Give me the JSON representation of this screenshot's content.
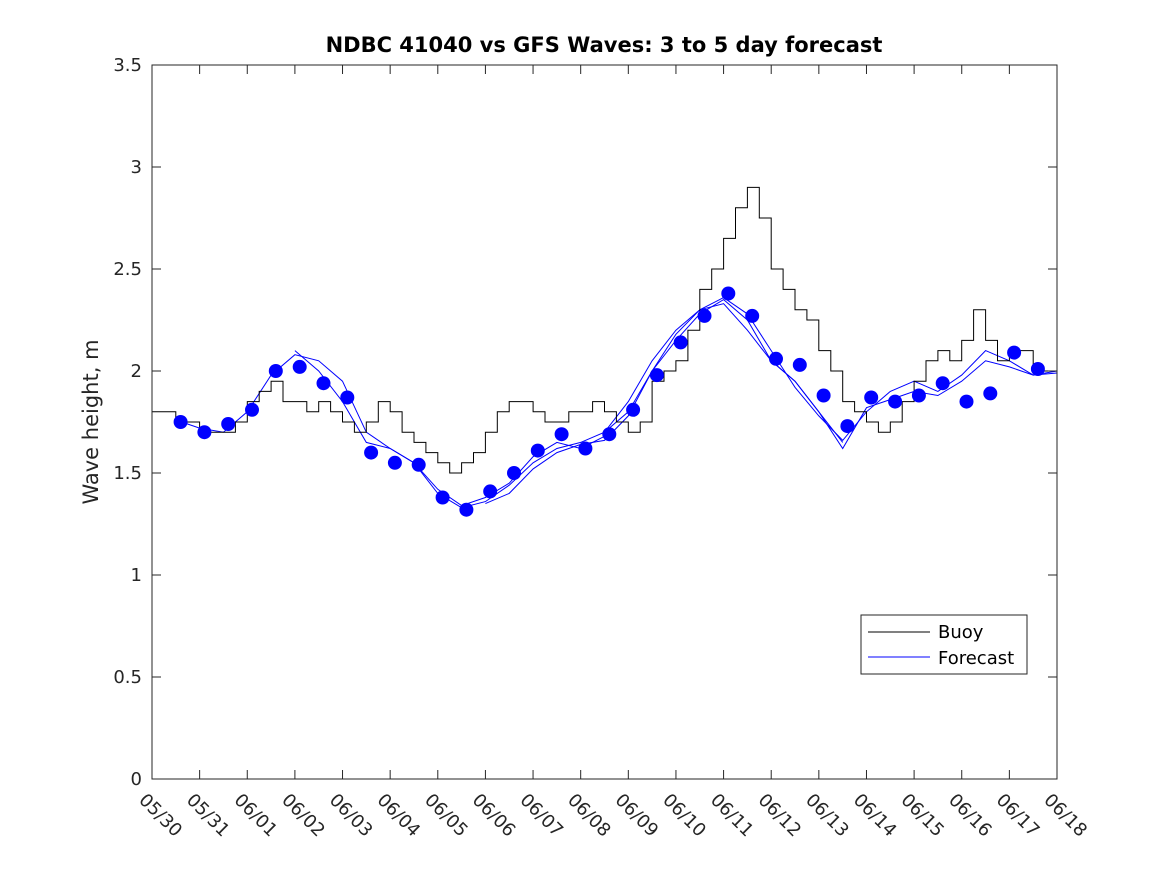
{
  "chart_data": {
    "type": "line",
    "title": "NDBC 41040 vs GFS Waves: 3 to 5 day forecast",
    "xlabel": "",
    "ylabel": "Wave height, m",
    "xlim": [
      0,
      19
    ],
    "ylim": [
      0,
      3.5
    ],
    "x_tick_labels": [
      "05/30",
      "05/31",
      "06/01",
      "06/02",
      "06/03",
      "06/04",
      "06/05",
      "06/06",
      "06/07",
      "06/08",
      "06/09",
      "06/10",
      "06/11",
      "06/12",
      "06/13",
      "06/14",
      "06/15",
      "06/16",
      "06/17",
      "06/18"
    ],
    "y_ticks": [
      0,
      0.5,
      1,
      1.5,
      2,
      2.5,
      3,
      3.5
    ],
    "y_tick_labels": [
      "0",
      "0.5",
      "1",
      "1.5",
      "2",
      "2.5",
      "3",
      "3.5"
    ],
    "x_units": "days since 05/30",
    "colors": {
      "buoy": "#000000",
      "forecast": "#0000ff"
    },
    "legend": {
      "placement": "lower-right",
      "entries": [
        "Buoy",
        "Forecast"
      ]
    },
    "buoy": {
      "name": "Buoy",
      "x": [
        0.0,
        0.25,
        0.5,
        0.75,
        1.0,
        1.25,
        1.5,
        1.75,
        2.0,
        2.25,
        2.5,
        2.75,
        3.0,
        3.25,
        3.5,
        3.75,
        4.0,
        4.25,
        4.5,
        4.75,
        5.0,
        5.25,
        5.5,
        5.75,
        6.0,
        6.25,
        6.5,
        6.75,
        7.0,
        7.25,
        7.5,
        7.75,
        8.0,
        8.25,
        8.5,
        8.75,
        9.0,
        9.25,
        9.5,
        9.75,
        10.0,
        10.25,
        10.5,
        10.75,
        11.0,
        11.25,
        11.5,
        11.75,
        12.0,
        12.25,
        12.5,
        12.75,
        13.0,
        13.25,
        13.5,
        13.75,
        14.0,
        14.25,
        14.5,
        14.75,
        15.0,
        15.25,
        15.5,
        15.75,
        16.0,
        16.25,
        16.5,
        16.75,
        17.0,
        17.25,
        17.5,
        17.75,
        18.0,
        18.25,
        18.5,
        18.75,
        19.0
      ],
      "y": [
        1.8,
        1.8,
        1.75,
        1.75,
        1.7,
        1.7,
        1.7,
        1.75,
        1.85,
        1.9,
        1.95,
        1.85,
        1.85,
        1.8,
        1.85,
        1.8,
        1.75,
        1.7,
        1.75,
        1.85,
        1.8,
        1.7,
        1.65,
        1.6,
        1.55,
        1.5,
        1.55,
        1.6,
        1.7,
        1.8,
        1.85,
        1.85,
        1.8,
        1.75,
        1.75,
        1.8,
        1.8,
        1.85,
        1.8,
        1.75,
        1.7,
        1.75,
        1.95,
        2.0,
        2.05,
        2.2,
        2.4,
        2.5,
        2.65,
        2.8,
        2.9,
        2.75,
        2.5,
        2.4,
        2.3,
        2.25,
        2.1,
        2.0,
        1.85,
        1.8,
        1.75,
        1.7,
        1.75,
        1.85,
        1.95,
        2.05,
        2.1,
        2.05,
        2.15,
        2.3,
        2.15,
        2.05,
        2.1,
        2.1,
        2.0,
        2.0,
        2.0
      ]
    },
    "forecast": {
      "name": "Forecast",
      "x": [
        0.6,
        1.1,
        1.6,
        2.1,
        2.6,
        3.1,
        3.6,
        4.1,
        4.6,
        5.1,
        5.6,
        6.1,
        6.6,
        7.1,
        7.6,
        8.1,
        8.6,
        9.1,
        9.6,
        10.1,
        10.6,
        11.1,
        11.6,
        12.1,
        12.6,
        13.1,
        13.6,
        14.1,
        14.6,
        15.1,
        15.6,
        16.1,
        16.6,
        17.1,
        17.6,
        18.1,
        18.6
      ],
      "y": [
        1.75,
        1.7,
        1.74,
        1.81,
        2.0,
        2.02,
        1.94,
        1.87,
        1.6,
        1.55,
        1.54,
        1.38,
        1.32,
        1.41,
        1.5,
        1.61,
        1.69,
        1.62,
        1.69,
        1.81,
        1.98,
        2.14,
        2.27,
        2.38,
        2.27,
        2.06,
        2.03,
        1.88,
        1.73,
        1.87,
        1.85,
        1.88,
        1.94,
        1.85,
        1.89,
        2.09,
        2.01
      ]
    },
    "forecast_runs": [
      {
        "x": [
          0.5,
          1.0,
          1.5,
          2.0,
          2.5,
          3.0,
          3.5,
          4.0,
          4.5,
          5.0,
          5.5,
          6.0,
          6.5,
          7.0,
          7.5,
          8.0,
          8.5,
          9.0,
          9.5
        ],
        "y": [
          1.76,
          1.72,
          1.7,
          1.8,
          1.98,
          2.08,
          2.05,
          1.95,
          1.7,
          1.62,
          1.55,
          1.42,
          1.34,
          1.38,
          1.45,
          1.58,
          1.65,
          1.62,
          1.68
        ]
      },
      {
        "x": [
          3.0,
          3.5,
          4.0,
          4.5,
          5.0,
          5.5,
          6.0,
          6.5,
          7.0,
          7.5,
          8.0,
          8.5,
          9.0,
          9.5,
          10.0,
          10.5,
          11.0,
          11.5,
          12.0,
          12.5,
          13.0,
          13.5,
          14.0,
          14.5
        ],
        "y": [
          2.1,
          2.0,
          1.85,
          1.65,
          1.62,
          1.55,
          1.4,
          1.33,
          1.36,
          1.44,
          1.55,
          1.62,
          1.65,
          1.7,
          1.85,
          2.05,
          2.2,
          2.3,
          2.33,
          2.2,
          2.05,
          1.95,
          1.8,
          1.65
        ]
      },
      {
        "x": [
          7.0,
          7.5,
          8.0,
          8.5,
          9.0,
          9.5,
          10.0,
          10.5,
          11.0,
          11.5,
          12.0,
          12.5,
          13.0,
          13.5,
          14.0,
          14.5,
          15.0,
          15.5,
          16.0,
          16.5,
          17.0,
          17.5,
          18.0,
          18.5,
          19.0
        ],
        "y": [
          1.35,
          1.4,
          1.52,
          1.6,
          1.64,
          1.66,
          1.78,
          2.0,
          2.15,
          2.28,
          2.35,
          2.25,
          2.05,
          1.95,
          1.8,
          1.62,
          1.82,
          1.86,
          1.9,
          1.88,
          1.95,
          2.05,
          2.02,
          1.98,
          2.0
        ]
      },
      {
        "x": [
          9.5,
          10.0,
          10.5,
          11.0,
          11.5,
          12.0,
          12.5,
          13.0,
          13.5,
          14.0,
          14.5,
          15.0,
          15.5,
          16.0,
          16.5,
          17.0,
          17.5,
          18.0,
          18.5,
          19.0
        ],
        "y": [
          1.7,
          1.8,
          2.0,
          2.18,
          2.3,
          2.36,
          2.28,
          2.1,
          1.92,
          1.78,
          1.66,
          1.8,
          1.9,
          1.95,
          1.9,
          1.98,
          2.1,
          2.05,
          1.98,
          1.99
        ]
      }
    ]
  }
}
